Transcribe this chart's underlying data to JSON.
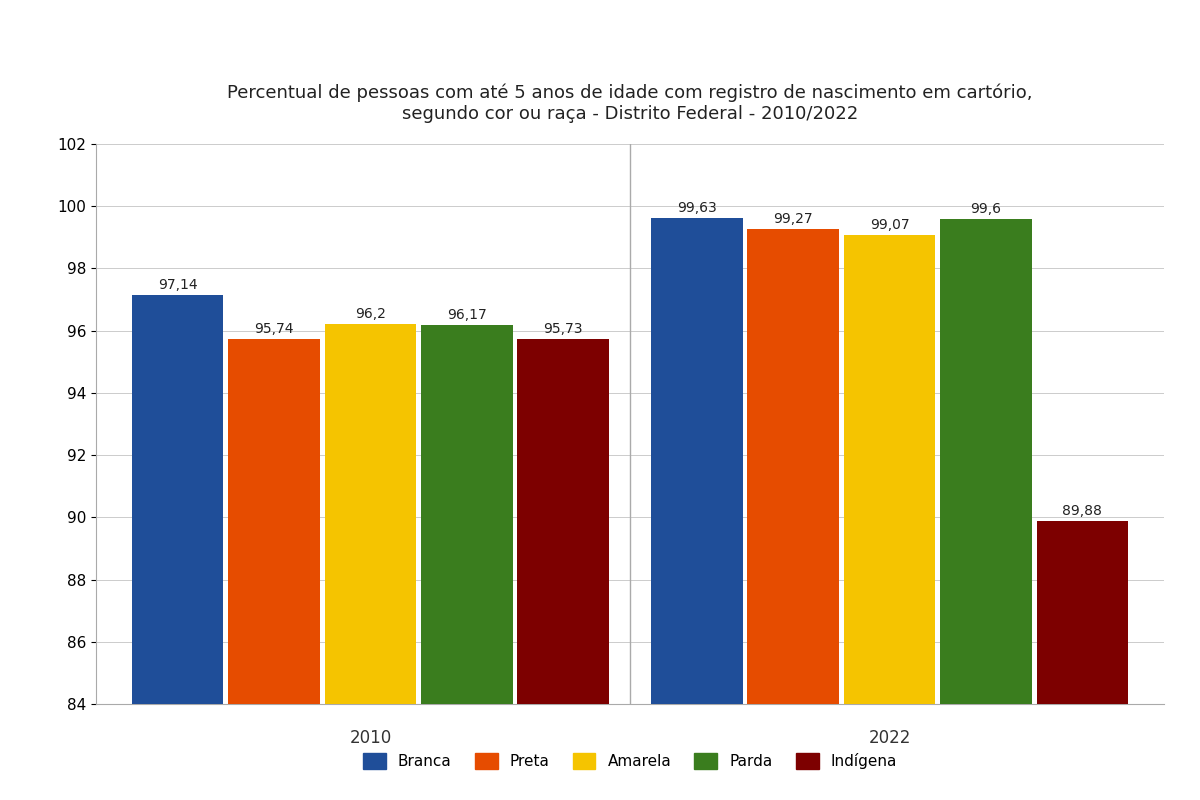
{
  "title": "Percentual de pessoas com até 5 anos de idade com registro de nascimento em cartório,\nsegundo cor ou raça - Distrito Federal - 2010/2022",
  "years": [
    "2010",
    "2022"
  ],
  "categories": [
    "Branca",
    "Preta",
    "Amarela",
    "Parda",
    "Indígena"
  ],
  "colors": [
    "#1f4e99",
    "#e64c00",
    "#f5c400",
    "#3a7d1e",
    "#7d0000"
  ],
  "values": {
    "2010": [
      97.14,
      95.74,
      96.2,
      96.17,
      95.73
    ],
    "2022": [
      99.63,
      99.27,
      99.07,
      99.6,
      89.88
    ]
  },
  "ylim": [
    84,
    102
  ],
  "yticks": [
    84,
    86,
    88,
    90,
    92,
    94,
    96,
    98,
    100,
    102
  ],
  "bar_width": 0.13,
  "label_fontsize": 10,
  "title_fontsize": 13,
  "tick_fontsize": 11,
  "legend_fontsize": 11,
  "background_color": "#ffffff"
}
